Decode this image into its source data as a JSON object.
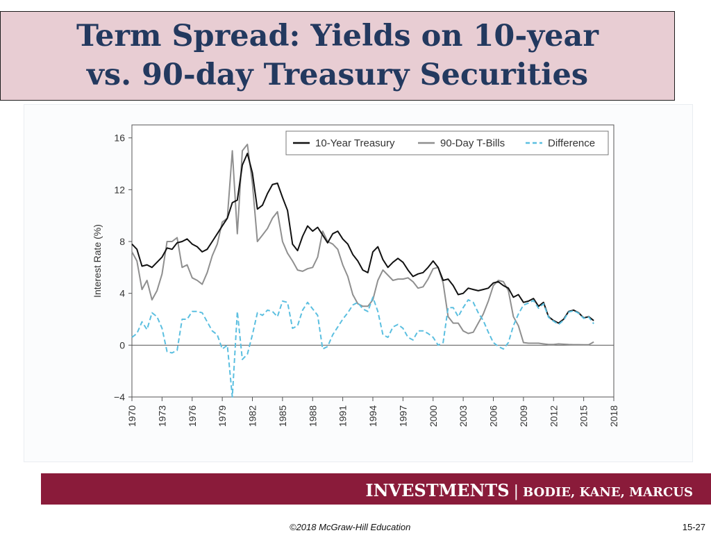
{
  "slide": {
    "title_line1": "Term Spread: Yields on 10-year",
    "title_line2": "vs. 90-day Treasury Securities",
    "footer_main": "INVESTMENTS",
    "footer_sep": "|",
    "footer_authors": "BODIE, KANE, MARCUS",
    "copyright": "©2018 McGraw-Hill Education",
    "page_number": "15-27"
  },
  "colors": {
    "title_text": "#23395f",
    "title_bg": "#e8cdd3",
    "footer_bg": "#8a1b3a",
    "ten_year": "#111111",
    "t_bill": "#8f8f8f",
    "difference": "#5bbfe0"
  },
  "chart_data": {
    "type": "line",
    "title": "",
    "xlabel": "",
    "ylabel": "Interest Rate (%)",
    "xlim": [
      1970,
      2018
    ],
    "ylim": [
      -4,
      17
    ],
    "x_ticks": [
      "1970",
      "1973",
      "1976",
      "1979",
      "1982",
      "1985",
      "1988",
      "1991",
      "1994",
      "1997",
      "2000",
      "2003",
      "2006",
      "2009",
      "2012",
      "2015",
      "2018"
    ],
    "y_ticks": [
      "−4",
      "0",
      "4",
      "8",
      "12",
      "16"
    ],
    "grid": false,
    "legend_position": "top-right",
    "x": [
      1970,
      1970.5,
      1971,
      1971.5,
      1972,
      1972.5,
      1973,
      1973.5,
      1974,
      1974.5,
      1975,
      1975.5,
      1976,
      1976.5,
      1977,
      1977.5,
      1978,
      1978.5,
      1979,
      1979.5,
      1980,
      1980.5,
      1981,
      1981.5,
      1982,
      1982.5,
      1983,
      1983.5,
      1984,
      1984.5,
      1985,
      1985.5,
      1986,
      1986.5,
      1987,
      1987.5,
      1988,
      1988.5,
      1989,
      1989.5,
      1990,
      1990.5,
      1991,
      1991.5,
      1992,
      1992.5,
      1993,
      1993.5,
      1994,
      1994.5,
      1995,
      1995.5,
      1996,
      1996.5,
      1997,
      1997.5,
      1998,
      1998.5,
      1999,
      1999.5,
      2000,
      2000.5,
      2001,
      2001.5,
      2002,
      2002.5,
      2003,
      2003.5,
      2004,
      2004.5,
      2005,
      2005.5,
      2006,
      2006.5,
      2007,
      2007.5,
      2008,
      2008.5,
      2009,
      2009.5,
      2010,
      2010.5,
      2011,
      2011.5,
      2012,
      2012.5,
      2013,
      2013.5,
      2014,
      2014.5,
      2015,
      2015.5,
      2016
    ],
    "series": [
      {
        "name": "10-Year Treasury",
        "style": "solid",
        "values": [
          7.8,
          7.4,
          6.1,
          6.2,
          6.0,
          6.4,
          6.8,
          7.5,
          7.4,
          7.9,
          8.0,
          8.2,
          7.8,
          7.6,
          7.2,
          7.4,
          8.0,
          8.6,
          9.2,
          9.8,
          11.0,
          11.2,
          13.9,
          14.8,
          13.3,
          10.5,
          10.8,
          11.7,
          12.4,
          12.5,
          11.4,
          10.4,
          7.8,
          7.3,
          8.4,
          9.2,
          8.8,
          9.1,
          8.5,
          7.9,
          8.6,
          8.8,
          8.2,
          7.8,
          7.0,
          6.5,
          5.8,
          5.6,
          7.2,
          7.6,
          6.6,
          6.0,
          6.4,
          6.7,
          6.4,
          5.8,
          5.3,
          5.5,
          5.6,
          6.0,
          6.5,
          6.0,
          5.0,
          5.1,
          4.6,
          3.9,
          4.0,
          4.4,
          4.3,
          4.2,
          4.3,
          4.4,
          4.8,
          4.9,
          4.6,
          4.4,
          3.7,
          3.9,
          3.3,
          3.4,
          3.6,
          3.0,
          3.3,
          2.2,
          1.9,
          1.7,
          2.0,
          2.6,
          2.7,
          2.5,
          2.1,
          2.2,
          1.9
        ]
      },
      {
        "name": "90-Day T-Bills",
        "style": "solid",
        "values": [
          7.2,
          6.5,
          4.3,
          5.0,
          3.5,
          4.2,
          5.5,
          8.0,
          8.0,
          8.3,
          6.0,
          6.2,
          5.2,
          5.0,
          4.7,
          5.6,
          6.9,
          7.8,
          9.5,
          9.8,
          15.0,
          8.6,
          15.0,
          15.5,
          12.5,
          8.0,
          8.5,
          9.0,
          9.8,
          10.3,
          8.0,
          7.1,
          6.5,
          5.8,
          5.7,
          5.9,
          6.0,
          6.8,
          8.8,
          8.0,
          7.8,
          7.4,
          6.2,
          5.3,
          3.9,
          3.2,
          3.0,
          3.0,
          3.5,
          5.0,
          5.8,
          5.4,
          5.0,
          5.1,
          5.1,
          5.2,
          4.9,
          4.4,
          4.5,
          5.1,
          5.9,
          6.0,
          4.8,
          2.2,
          1.7,
          1.7,
          1.1,
          0.9,
          1.0,
          1.7,
          2.4,
          3.4,
          4.6,
          5.0,
          4.9,
          4.2,
          2.2,
          1.5,
          0.2,
          0.15,
          0.15,
          0.15,
          0.1,
          0.05,
          0.05,
          0.1,
          0.07,
          0.05,
          0.04,
          0.04,
          0.03,
          0.03,
          0.25
        ]
      },
      {
        "name": "Difference",
        "style": "dashed",
        "values": [
          0.6,
          0.9,
          1.8,
          1.2,
          2.5,
          2.2,
          1.3,
          -0.5,
          -0.6,
          -0.4,
          2.0,
          2.0,
          2.6,
          2.6,
          2.5,
          1.8,
          1.1,
          0.8,
          -0.3,
          0.0,
          -4.0,
          2.6,
          -1.1,
          -0.7,
          0.8,
          2.5,
          2.3,
          2.7,
          2.6,
          2.2,
          3.4,
          3.3,
          1.3,
          1.5,
          2.7,
          3.3,
          2.8,
          2.3,
          -0.3,
          -0.1,
          0.8,
          1.4,
          2.0,
          2.5,
          3.1,
          3.3,
          2.8,
          2.6,
          3.7,
          2.6,
          0.8,
          0.6,
          1.4,
          1.6,
          1.3,
          0.6,
          0.4,
          1.1,
          1.1,
          0.9,
          0.6,
          0.0,
          0.2,
          2.9,
          2.9,
          2.2,
          2.9,
          3.5,
          3.3,
          2.5,
          1.9,
          1.0,
          0.2,
          -0.1,
          -0.3,
          0.2,
          1.5,
          2.4,
          3.1,
          3.25,
          3.45,
          2.85,
          3.2,
          2.15,
          1.85,
          1.6,
          1.93,
          2.55,
          2.66,
          2.46,
          2.07,
          2.17,
          1.65
        ]
      }
    ]
  }
}
